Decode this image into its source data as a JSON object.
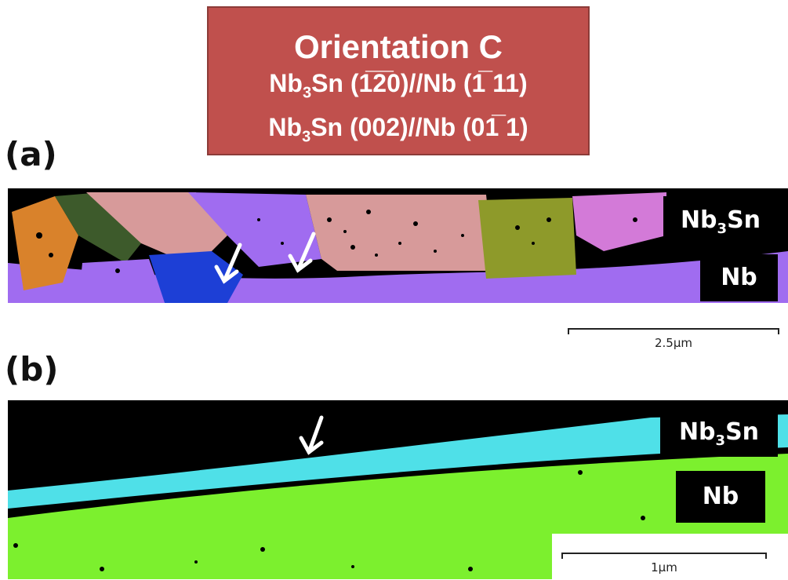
{
  "header": {
    "title": "Orientation C",
    "relation_1": {
      "phase_a": "Nb",
      "sub_a": "3",
      "phase_a2": "Sn",
      "plane_a": "(1̅2̅0)",
      "sep": "//",
      "phase_b": "Nb",
      "plane_b": "(1̅ 11)"
    },
    "relation_2": {
      "phase_a": "Nb",
      "sub_a": "3",
      "phase_a2": "Sn",
      "plane_a": "(002)",
      "sep": "//",
      "phase_b": "Nb",
      "plane_b": "(01̅ 1)"
    }
  },
  "panel_a": {
    "label": "(a)",
    "tag_top": {
      "main": "Nb",
      "sub": "3",
      "tail": "Sn"
    },
    "tag_bottom": "Nb",
    "scale_label": "2.5µm"
  },
  "panel_b": {
    "label": "(b)",
    "tag_top": {
      "main": "Nb",
      "sub": "3",
      "tail": "Sn"
    },
    "tag_bottom": "Nb",
    "scale_label": "1µm"
  },
  "colors": {
    "title_bg": "#c0504d",
    "grain_purple": "#a06cf0",
    "grain_pink": "#d79a9a",
    "grain_olive": "#8e9a2a",
    "grain_orange": "#d9822b",
    "grain_blue": "#1d3fd6",
    "grain_magenta": "#d37ad8",
    "grain_dark_green": "#3d5a2b",
    "layer_cyan": "#4fe0e8",
    "substrate_green": "#7cf02e"
  }
}
